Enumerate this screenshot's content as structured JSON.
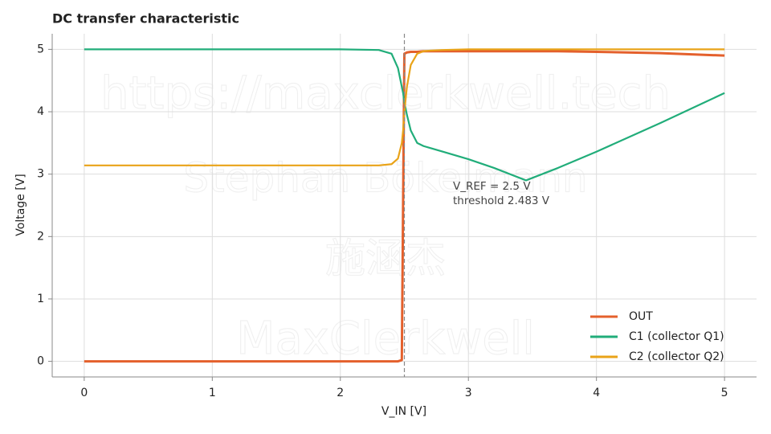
{
  "chart_data": {
    "type": "line",
    "title": "DC transfer characteristic",
    "xlabel": "V_IN [V]",
    "ylabel": "Voltage [V]",
    "x": [
      0,
      0.5,
      1,
      1.5,
      2,
      2.3,
      2.4,
      2.45,
      2.48,
      2.49,
      2.5,
      2.52,
      2.55,
      2.6,
      2.65,
      2.7,
      2.8,
      3,
      3.2,
      3.45,
      3.7,
      4,
      4.5,
      5
    ],
    "series": [
      {
        "name": "OUT",
        "color": "#e4602c",
        "values": [
          0,
          0,
          0,
          0,
          0,
          0,
          0,
          0,
          0.02,
          2.5,
          4.93,
          4.95,
          4.96,
          4.96,
          4.97,
          4.97,
          4.97,
          4.97,
          4.97,
          4.97,
          4.97,
          4.96,
          4.94,
          4.9
        ]
      },
      {
        "name": "C1 (collector Q1)",
        "color": "#21ad7a",
        "values": [
          5,
          5,
          5,
          5,
          5,
          4.99,
          4.93,
          4.7,
          4.4,
          4.3,
          4.15,
          3.95,
          3.7,
          3.5,
          3.45,
          3.42,
          3.36,
          3.24,
          3.1,
          2.9,
          3.1,
          3.36,
          3.82,
          4.3
        ]
      },
      {
        "name": "C2 (collector Q2)",
        "color": "#e9a318",
        "values": [
          3.14,
          3.14,
          3.14,
          3.14,
          3.14,
          3.14,
          3.16,
          3.25,
          3.5,
          3.7,
          4.0,
          4.4,
          4.75,
          4.93,
          4.97,
          4.98,
          4.99,
          5,
          5,
          5,
          5,
          5,
          5,
          5
        ]
      }
    ],
    "vline": 2.5,
    "annotation": [
      "V_REF = 2.5 V",
      "threshold 2.483 V"
    ],
    "watermark": [
      "https://maxclerkwell.tech",
      "Stephan Bökelmann",
      "施涵杰",
      "MaxClerkwell"
    ],
    "xlim": [
      -0.25,
      5.25
    ],
    "ylim": [
      -0.25,
      5.25
    ],
    "xticks": [
      0,
      1,
      2,
      3,
      4,
      5
    ],
    "yticks": [
      0,
      1,
      2,
      3,
      4,
      5
    ],
    "grid": true,
    "legend": "lower right"
  }
}
